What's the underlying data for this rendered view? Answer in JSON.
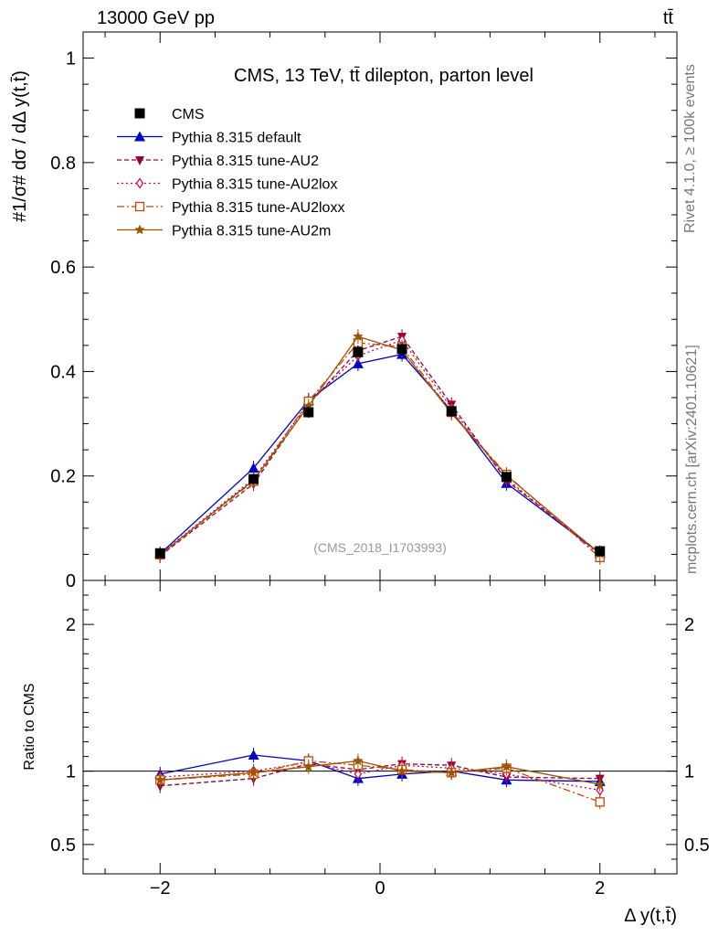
{
  "header": {
    "energy": "13000 GeV pp",
    "process": "tt̄",
    "side_label": "Rivet 4.1.0, ≥ 100k events",
    "side_source": "mcplots.cern.ch [arXiv:2401.10621]"
  },
  "chart_data": {
    "type": "line",
    "title": "CMS, 13 TeV, tt̄ dilepton, parton level",
    "watermark": "(CMS_2018_I1703993)",
    "xlabel": "Δ y(t,t̄)",
    "ylabel_main": "#1/σ# dσ / dΔ y(t,t̄)",
    "ylabel_ratio": "Ratio to CMS",
    "xlim": [
      -2.7,
      2.7
    ],
    "ylim_main": [
      0,
      1.05
    ],
    "ylim_ratio": [
      0.3,
      2.3
    ],
    "x_ticks": [
      -2,
      0,
      2
    ],
    "x_tick_labels": [
      "−2",
      "0",
      "2"
    ],
    "y_ticks_main": [
      0,
      0.2,
      0.4,
      0.6,
      0.8,
      1
    ],
    "y_tick_labels_main": [
      "0",
      "0.2",
      "0.4",
      "0.6",
      "0.8",
      "1"
    ],
    "y_ticks_ratio": [
      0.5,
      1,
      2
    ],
    "y_tick_labels_ratio": [
      "0.5",
      "1",
      "2"
    ],
    "x": [
      -2.0,
      -1.15,
      -0.65,
      -0.2,
      0.2,
      0.65,
      1.15,
      2.0
    ],
    "data": {
      "name": "CMS",
      "values": [
        0.052,
        0.194,
        0.322,
        0.437,
        0.443,
        0.324,
        0.198,
        0.056
      ],
      "errors": [
        0.004,
        0.009,
        0.011,
        0.013,
        0.013,
        0.011,
        0.009,
        0.004
      ]
    },
    "series": [
      {
        "name": "Pythia 8.315 default",
        "color": "#0000cc",
        "marker": "triangle-up",
        "dash": "",
        "values": [
          0.051,
          0.215,
          0.345,
          0.415,
          0.433,
          0.325,
          0.186,
          0.052
        ],
        "ratio": [
          0.98,
          1.11,
          1.07,
          0.95,
          0.98,
          1.0,
          0.94,
          0.93
        ]
      },
      {
        "name": "Pythia 8.315 tune-AU2",
        "color": "#990033",
        "marker": "triangle-down",
        "dash": "5,3",
        "values": [
          0.047,
          0.185,
          0.337,
          0.44,
          0.467,
          0.337,
          0.191,
          0.053
        ],
        "ratio": [
          0.9,
          0.95,
          1.05,
          1.01,
          1.05,
          1.04,
          0.96,
          0.95
        ]
      },
      {
        "name": "Pythia 8.315 tune-AU2lox",
        "color": "#cc0044",
        "marker": "diamond-open",
        "dash": "2,3",
        "values": [
          0.05,
          0.195,
          0.34,
          0.43,
          0.46,
          0.33,
          0.195,
          0.049
        ],
        "ratio": [
          0.96,
          1.0,
          1.06,
          0.98,
          1.04,
          1.02,
          0.98,
          0.87
        ]
      },
      {
        "name": "Pythia 8.315 tune-AU2loxx",
        "color": "#cc4400",
        "marker": "square-open",
        "dash": "8,3,2,3",
        "values": [
          0.049,
          0.19,
          0.343,
          0.455,
          0.447,
          0.322,
          0.203,
          0.044
        ],
        "ratio": [
          0.94,
          0.98,
          1.07,
          1.04,
          1.01,
          0.99,
          1.02,
          0.79
        ]
      },
      {
        "name": "Pythia 8.315 tune-AU2m",
        "color": "#995500",
        "marker": "star",
        "dash": "",
        "values": [
          0.049,
          0.192,
          0.334,
          0.467,
          0.441,
          0.32,
          0.201,
          0.051
        ],
        "ratio": [
          0.94,
          0.99,
          1.03,
          1.07,
          1.0,
          0.99,
          1.03,
          0.91
        ]
      }
    ]
  }
}
